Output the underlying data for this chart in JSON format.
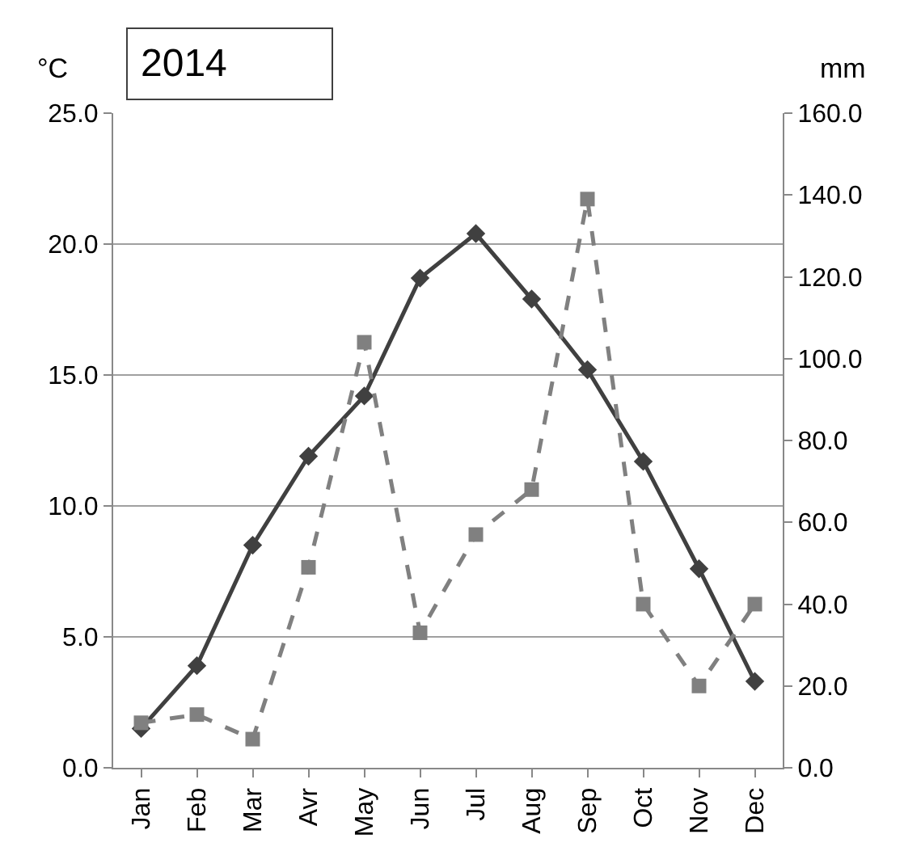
{
  "chart_data": {
    "type": "line",
    "title": "2014",
    "ylabel": "°C",
    "y2label": "mm",
    "categories": [
      "Jan",
      "Feb",
      "Mar",
      "Avr",
      "May",
      "Jun",
      "Jul",
      "Aug",
      "Sep",
      "Oct",
      "Nov",
      "Dec"
    ],
    "series": [
      {
        "color": "#404040",
        "marker": "diamond",
        "line_style": "solid",
        "values": [
          1.5,
          3.9,
          8.5,
          11.9,
          14.2,
          18.7,
          20.4,
          17.9,
          15.2,
          11.7,
          7.6,
          3.3
        ]
      },
      {
        "color": "#808080",
        "marker": "square",
        "line_style": "dashed",
        "axis": "y2",
        "values": [
          11,
          13,
          7,
          49,
          104,
          33,
          57,
          68,
          139,
          40,
          20,
          40
        ]
      }
    ],
    "ylim": [
      0,
      25
    ],
    "yticks": [
      {
        "value": 0,
        "label": "0.0"
      },
      {
        "value": 5,
        "label": "5.0"
      },
      {
        "value": 10,
        "label": "10.0"
      },
      {
        "value": 15,
        "label": "15.0"
      },
      {
        "value": 20,
        "label": "20.0"
      },
      {
        "value": 25,
        "label": "25.0"
      }
    ],
    "y2lim": [
      0,
      160
    ],
    "y2ticks": [
      {
        "value": 0,
        "label": "0.0"
      },
      {
        "value": 20,
        "label": "20.0"
      },
      {
        "value": 40,
        "label": "40.0"
      },
      {
        "value": 60,
        "label": "60.0"
      },
      {
        "value": 80,
        "label": "80.0"
      },
      {
        "value": 100,
        "label": "100.0"
      },
      {
        "value": 120,
        "label": "120.0"
      },
      {
        "value": 140,
        "label": "140.0"
      },
      {
        "value": 160,
        "label": "160.0"
      }
    ],
    "grid": "y"
  }
}
